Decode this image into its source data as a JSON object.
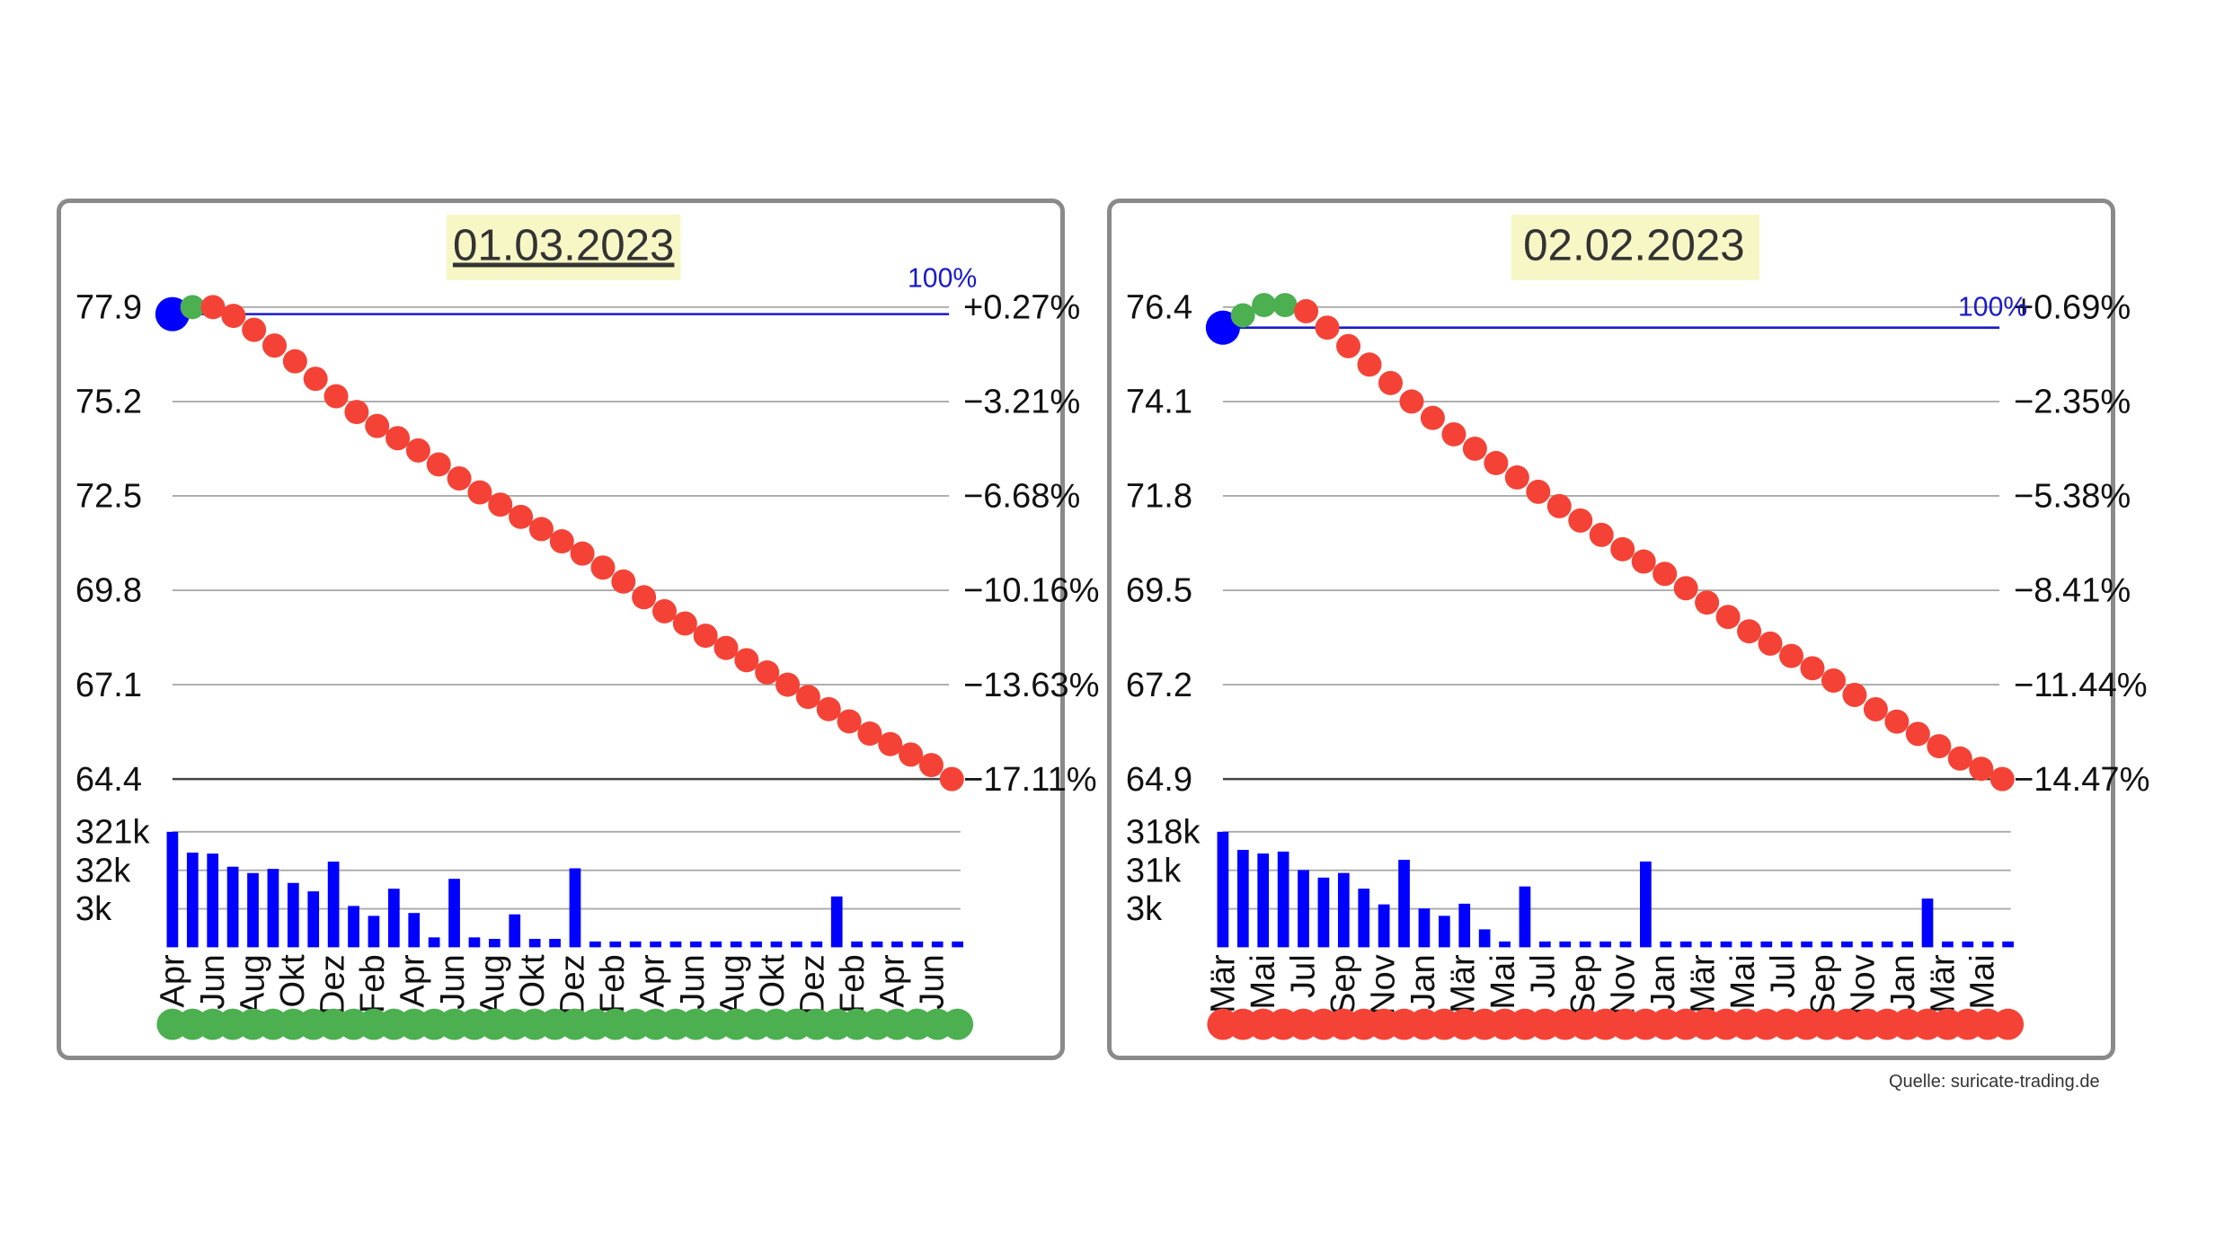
{
  "source_label": "Quelle: suricate-trading.de",
  "colors": {
    "up_dot": "#4caf50",
    "down_dot": "#f44336",
    "start_dot": "#0000ff",
    "bar": "#0000ff",
    "title_bg": "#f7f7c6",
    "reference_line": "#1a1acc",
    "grid": "#aaaaaa"
  },
  "chart_data": [
    {
      "type": "line",
      "title": "01.03.2023",
      "title_underlined": true,
      "reference_label": "100%",
      "y_ticks": [
        "77.9",
        "75.2",
        "72.5",
        "69.8",
        "67.1",
        "64.4"
      ],
      "y_tick_values": [
        77.9,
        75.2,
        72.5,
        69.8,
        67.1,
        64.4
      ],
      "y_right_ticks": [
        "+0.27%",
        "−3.21%",
        "−6.68%",
        "−10.16%",
        "−13.63%",
        "−17.11%"
      ],
      "ylim": [
        64.4,
        77.9
      ],
      "start_value": 77.7,
      "series": [
        {
          "values": [
            77.9,
            77.9,
            77.65,
            77.25,
            76.8,
            76.35,
            75.85,
            75.35,
            74.9,
            74.5,
            74.15,
            73.8,
            73.4,
            73.0,
            72.6,
            72.25,
            71.9,
            71.55,
            71.2,
            70.85,
            70.45,
            70.05,
            69.6,
            69.2,
            68.85,
            68.5,
            68.15,
            67.8,
            67.45,
            67.1,
            66.75,
            66.4,
            66.05,
            65.7,
            65.4,
            65.1,
            64.8,
            64.4
          ],
          "colors": [
            "up",
            "down",
            "down",
            "down",
            "down",
            "down",
            "down",
            "down",
            "down",
            "down",
            "down",
            "down",
            "down",
            "down",
            "down",
            "down",
            "down",
            "down",
            "down",
            "down",
            "down",
            "down",
            "down",
            "down",
            "down",
            "down",
            "down",
            "down",
            "down",
            "down",
            "down",
            "down",
            "down",
            "down",
            "down",
            "down",
            "down",
            "down"
          ]
        }
      ],
      "volume_ticks": [
        "321k",
        "32k",
        "3k"
      ],
      "volume_bars": [
        321000,
        75000,
        70000,
        28000,
        18000,
        24000,
        9000,
        5000,
        40000,
        1800,
        900,
        6000,
        1100,
        200,
        12000,
        200,
        180,
        1000,
        180,
        180,
        25000,
        150,
        150,
        150,
        150,
        150,
        150,
        150,
        150,
        150,
        150,
        150,
        150,
        3500,
        150,
        150,
        150,
        150,
        150,
        150
      ],
      "x_labels": [
        "Apr",
        "Jun",
        "Aug",
        "Okt",
        "Dez",
        "Feb",
        "Apr",
        "Jun",
        "Aug",
        "Okt",
        "Dez",
        "Feb",
        "Apr",
        "Jun",
        "Aug",
        "Okt",
        "Dez",
        "Feb",
        "Apr",
        "Jun"
      ],
      "status_dot_color": "up",
      "status_dot_count": 40
    },
    {
      "type": "line",
      "title": "02.02.2023",
      "title_underlined": false,
      "reference_label": "100%",
      "y_ticks": [
        "76.4",
        "74.1",
        "71.8",
        "69.5",
        "67.2",
        "64.9"
      ],
      "y_tick_values": [
        76.4,
        74.1,
        71.8,
        69.5,
        67.2,
        64.9
      ],
      "y_right_ticks": [
        "+0.69%",
        "−2.35%",
        "−5.38%",
        "−8.41%",
        "−11.44%",
        "−14.47%"
      ],
      "ylim": [
        64.9,
        76.4
      ],
      "start_value": 75.9,
      "series": [
        {
          "values": [
            76.2,
            76.45,
            76.45,
            76.3,
            75.9,
            75.45,
            75.0,
            74.55,
            74.1,
            73.7,
            73.3,
            72.95,
            72.6,
            72.25,
            71.9,
            71.55,
            71.2,
            70.85,
            70.5,
            70.2,
            69.9,
            69.55,
            69.2,
            68.85,
            68.5,
            68.2,
            67.9,
            67.6,
            67.3,
            66.95,
            66.6,
            66.3,
            66.0,
            65.7,
            65.4,
            65.15,
            64.9
          ],
          "colors": [
            "up",
            "up",
            "up",
            "down",
            "down",
            "down",
            "down",
            "down",
            "down",
            "down",
            "down",
            "down",
            "down",
            "down",
            "down",
            "down",
            "down",
            "down",
            "down",
            "down",
            "down",
            "down",
            "down",
            "down",
            "down",
            "down",
            "down",
            "down",
            "down",
            "down",
            "down",
            "down",
            "down",
            "down",
            "down",
            "down",
            "down"
          ]
        }
      ],
      "volume_ticks": [
        "318k",
        "31k",
        "3k"
      ],
      "volume_bars": [
        318000,
        90000,
        70000,
        80000,
        22000,
        13000,
        18000,
        6000,
        2000,
        45000,
        1500,
        900,
        2100,
        350,
        150,
        7000,
        150,
        150,
        150,
        150,
        150,
        40000,
        150,
        150,
        150,
        150,
        150,
        150,
        150,
        150,
        150,
        150,
        150,
        150,
        150,
        3000,
        150,
        150,
        150,
        150
      ],
      "x_labels": [
        "Mär",
        "Mai",
        "Jul",
        "Sep",
        "Nov",
        "Jan",
        "Mär",
        "Mai",
        "Jul",
        "Sep",
        "Nov",
        "Jan",
        "Mär",
        "Mai",
        "Jul",
        "Sep",
        "Nov",
        "Jan",
        "Mär",
        "Mai"
      ],
      "status_dot_color": "down",
      "status_dot_count": 40
    }
  ]
}
